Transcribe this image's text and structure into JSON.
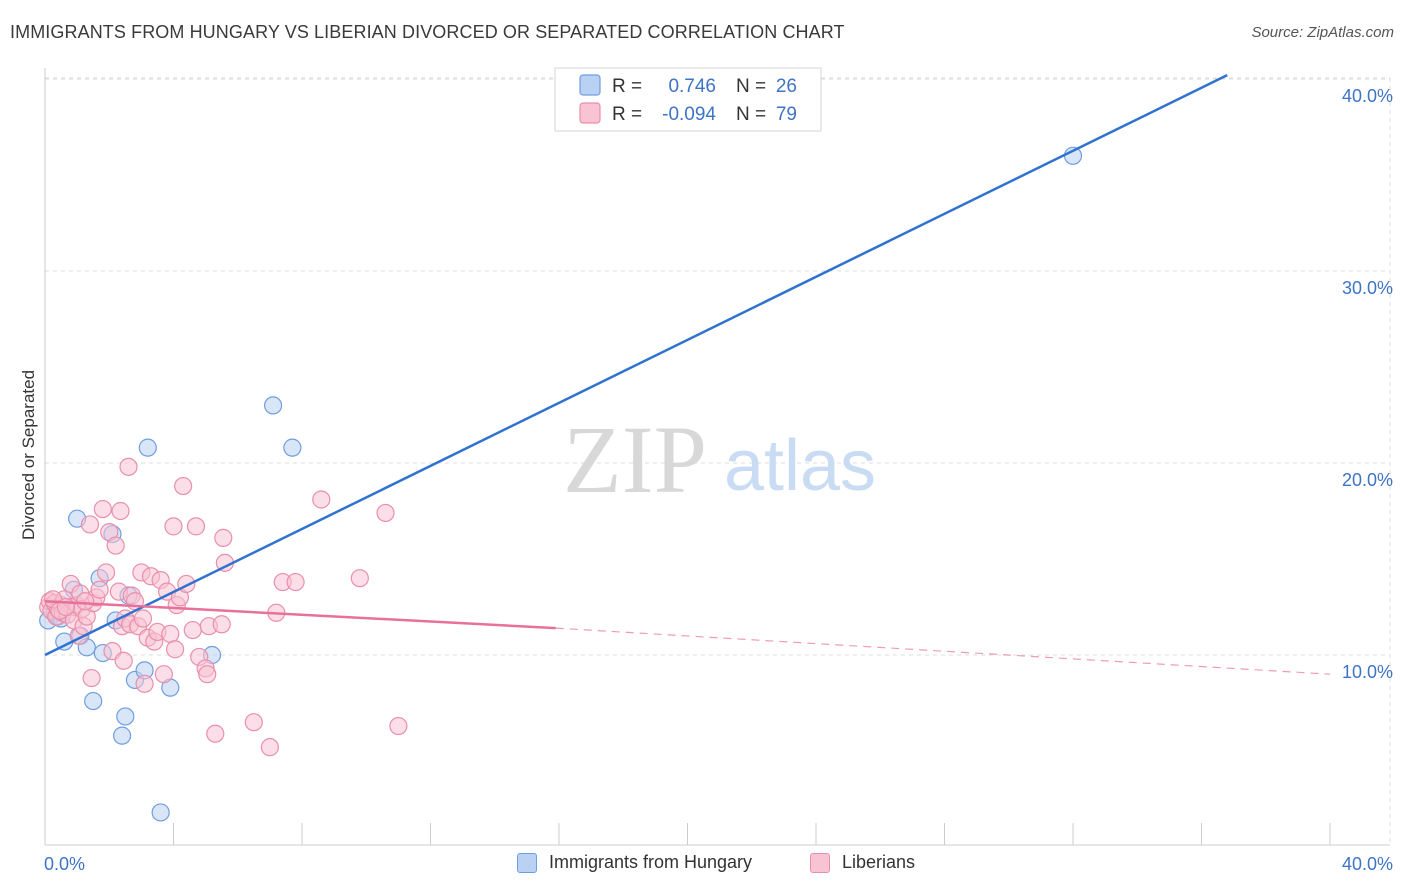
{
  "title": "IMMIGRANTS FROM HUNGARY VS LIBERIAN DIVORCED OR SEPARATED CORRELATION CHART",
  "source": "Source: ZipAtlas.com",
  "watermark": {
    "zip": "ZIP",
    "atlas": "atlas"
  },
  "legend_top": {
    "rows": [
      {
        "r_label": "R =",
        "r_value": "0.746",
        "n_label": "N =",
        "n_value": "26"
      },
      {
        "r_label": "R =",
        "r_value": "-0.094",
        "n_label": "N =",
        "n_value": "79"
      }
    ]
  },
  "colors": {
    "blue_fill": "#b9d2f3",
    "blue_stroke": "#6f9ee0",
    "blue_line": "#2f72d0",
    "pink_fill": "#f8c3d3",
    "pink_stroke": "#ea8fab",
    "pink_line": "#e8709a",
    "axis_text": "#3d74c6",
    "grid": "#dddddd"
  },
  "chart_data": {
    "type": "scatter",
    "title": "IMMIGRANTS FROM HUNGARY VS LIBERIAN DIVORCED OR SEPARATED CORRELATION CHART",
    "xlabel": "",
    "ylabel": "Divorced or Separated",
    "xlim": [
      0,
      40
    ],
    "ylim": [
      0,
      41
    ],
    "x_tick_labels": [
      "0.0%",
      "40.0%"
    ],
    "y_ticks": [
      10,
      20,
      30,
      40
    ],
    "y_tick_labels": [
      "10.0%",
      "20.0%",
      "30.0%",
      "40.0%"
    ],
    "grid": true,
    "legend_position": "top-center",
    "series": [
      {
        "name": "Immigrants from Hungary",
        "color": "blue",
        "r": 0.746,
        "n": 26,
        "points": [
          [
            0.1,
            11.8
          ],
          [
            0.3,
            12.2
          ],
          [
            0.4,
            12.0
          ],
          [
            0.5,
            11.9
          ],
          [
            0.6,
            10.7
          ],
          [
            0.9,
            13.4
          ],
          [
            1.0,
            17.1
          ],
          [
            1.1,
            11.0
          ],
          [
            1.3,
            10.4
          ],
          [
            1.7,
            14.0
          ],
          [
            1.8,
            10.1
          ],
          [
            2.1,
            16.3
          ],
          [
            2.2,
            11.8
          ],
          [
            2.4,
            5.8
          ],
          [
            2.5,
            6.8
          ],
          [
            2.6,
            13.1
          ],
          [
            2.8,
            8.7
          ],
          [
            3.1,
            9.2
          ],
          [
            3.2,
            20.8
          ],
          [
            3.6,
            1.8
          ],
          [
            3.9,
            8.3
          ],
          [
            5.2,
            10.0
          ],
          [
            7.1,
            23.0
          ],
          [
            7.7,
            20.8
          ],
          [
            32.0,
            36.0
          ],
          [
            1.5,
            7.6
          ]
        ],
        "trend": {
          "x1": 0,
          "y1": 10.0,
          "x2": 36.8,
          "y2": 40.2
        }
      },
      {
        "name": "Liberians",
        "color": "pink",
        "r": -0.094,
        "n": 79,
        "points": [
          [
            0.1,
            12.5
          ],
          [
            0.15,
            12.8
          ],
          [
            0.2,
            12.3
          ],
          [
            0.3,
            12.7
          ],
          [
            0.35,
            12.0
          ],
          [
            0.4,
            12.4
          ],
          [
            0.5,
            12.6
          ],
          [
            0.55,
            12.2
          ],
          [
            0.6,
            12.9
          ],
          [
            0.7,
            12.1
          ],
          [
            0.8,
            13.7
          ],
          [
            0.85,
            12.5
          ],
          [
            0.9,
            11.8
          ],
          [
            1.0,
            12.6
          ],
          [
            1.05,
            11.0
          ],
          [
            1.1,
            13.2
          ],
          [
            1.15,
            12.4
          ],
          [
            1.2,
            11.5
          ],
          [
            1.3,
            12.0
          ],
          [
            1.4,
            16.8
          ],
          [
            1.45,
            8.8
          ],
          [
            1.5,
            12.7
          ],
          [
            1.6,
            13.0
          ],
          [
            1.7,
            13.4
          ],
          [
            1.8,
            17.6
          ],
          [
            1.9,
            14.3
          ],
          [
            2.0,
            16.4
          ],
          [
            2.1,
            10.2
          ],
          [
            2.2,
            15.7
          ],
          [
            2.3,
            13.3
          ],
          [
            2.35,
            17.5
          ],
          [
            2.4,
            11.5
          ],
          [
            2.45,
            9.7
          ],
          [
            2.5,
            11.9
          ],
          [
            2.6,
            19.8
          ],
          [
            2.65,
            11.6
          ],
          [
            2.7,
            13.1
          ],
          [
            2.8,
            12.8
          ],
          [
            2.9,
            11.5
          ],
          [
            3.0,
            14.3
          ],
          [
            3.05,
            11.9
          ],
          [
            3.1,
            8.5
          ],
          [
            3.2,
            10.9
          ],
          [
            3.3,
            14.1
          ],
          [
            3.4,
            10.7
          ],
          [
            3.5,
            11.2
          ],
          [
            3.6,
            13.9
          ],
          [
            3.7,
            9.0
          ],
          [
            3.8,
            13.3
          ],
          [
            3.9,
            11.1
          ],
          [
            4.0,
            16.7
          ],
          [
            4.05,
            10.3
          ],
          [
            4.1,
            12.6
          ],
          [
            4.2,
            13.0
          ],
          [
            4.3,
            18.8
          ],
          [
            4.4,
            13.7
          ],
          [
            4.6,
            11.3
          ],
          [
            4.7,
            16.7
          ],
          [
            4.8,
            9.9
          ],
          [
            5.0,
            9.3
          ],
          [
            5.05,
            9.0
          ],
          [
            5.1,
            11.5
          ],
          [
            5.3,
            5.9
          ],
          [
            5.5,
            11.6
          ],
          [
            5.55,
            16.1
          ],
          [
            5.6,
            14.8
          ],
          [
            6.5,
            6.5
          ],
          [
            7.0,
            5.2
          ],
          [
            7.2,
            12.2
          ],
          [
            7.4,
            13.8
          ],
          [
            7.8,
            13.8
          ],
          [
            8.6,
            18.1
          ],
          [
            9.8,
            14.0
          ],
          [
            10.6,
            17.4
          ],
          [
            11.0,
            6.3
          ],
          [
            0.25,
            12.9
          ],
          [
            0.45,
            12.3
          ],
          [
            0.65,
            12.5
          ],
          [
            1.25,
            12.8
          ]
        ],
        "trend": {
          "x1": 0,
          "y1": 12.8,
          "x2": 15.9,
          "y2": 11.4
        },
        "trend_dashed": {
          "x1": 15.9,
          "y1": 11.4,
          "x2": 40,
          "y2": 9.0
        }
      }
    ]
  }
}
